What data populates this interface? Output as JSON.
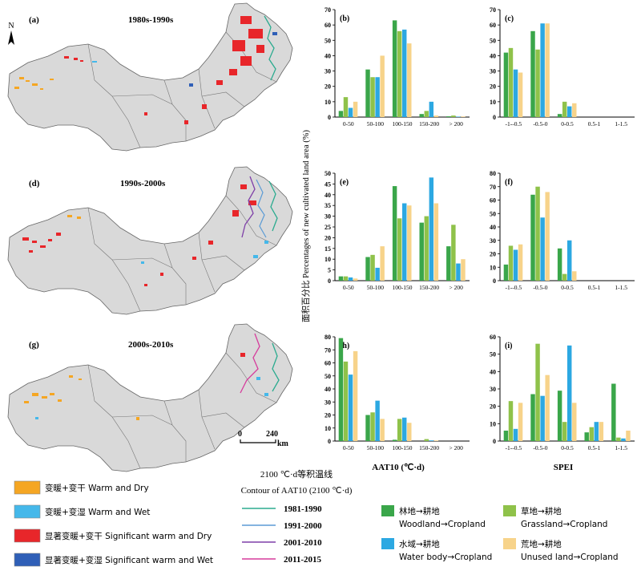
{
  "colors": {
    "woodland": "#3aa64a",
    "grassland": "#8fc24a",
    "water": "#2ca8e2",
    "unused": "#f7d38a",
    "warm_dry": "#f5a623",
    "warm_wet": "#45b8ea",
    "sig_warm_dry": "#e8262a",
    "sig_warm_wet": "#2f5fb7",
    "c1981": "#2bab8f",
    "c1991": "#5b9bd5",
    "c2001": "#7e3fa8",
    "c2011": "#d63c9c",
    "map_fill": "#d9d9d9"
  },
  "maps": [
    {
      "panel": "(a)",
      "title": "1980s-1990s"
    },
    {
      "panel": "(d)",
      "title": "1990s-2000s"
    },
    {
      "panel": "(g)",
      "title": "2000s-2010s"
    }
  ],
  "north_label": "N",
  "scale": {
    "zero": "0",
    "value": "240",
    "unit": "km"
  },
  "y_axis_label": "面积百分比 Percentages of new cultivated land area (%)",
  "x_label_aat": "AAT10 (℃·d)",
  "x_label_spei": "SPEI",
  "contour_title_cn": "2100 ℃·d等积温线",
  "contour_title_en": "Contour of AAT10 (2100 ℃·d)",
  "contours": [
    {
      "label": "1981-1990",
      "color_key": "c1981"
    },
    {
      "label": "1991-2000",
      "color_key": "c1991"
    },
    {
      "label": "2001-2010",
      "color_key": "c2001"
    },
    {
      "label": "2011-2015",
      "color_key": "c2011"
    }
  ],
  "climate_legend": [
    {
      "label": "变暖+变干 Warm and Dry",
      "color_key": "warm_dry"
    },
    {
      "label": "变暖+变湿 Warm and Wet",
      "color_key": "warm_wet"
    },
    {
      "label": "显著变暖+变干 Significant warm and Dry",
      "color_key": "sig_warm_dry"
    },
    {
      "label": "显著变暖+变湿  Significant warm and Wet",
      "color_key": "sig_warm_wet"
    }
  ],
  "conversion_legend": [
    {
      "cn": "林地→耕地",
      "en": "Woodland→Cropland",
      "color_key": "woodland"
    },
    {
      "cn": "草地→耕地",
      "en": "Grassland→Cropland",
      "color_key": "grassland"
    },
    {
      "cn": "水域→耕地",
      "en": "Water body→Cropland",
      "color_key": "water"
    },
    {
      "cn": "荒地→耕地",
      "en": "Unused land→Cropland",
      "color_key": "unused"
    }
  ],
  "chart_data": [
    {
      "panel": "(b)",
      "type": "bar",
      "axis": "aat",
      "categories": [
        "0-50",
        "50-100",
        "100-150",
        "150-200",
        "> 200"
      ],
      "ylim": [
        0,
        70
      ],
      "yticks": [
        0,
        10,
        20,
        30,
        40,
        50,
        60,
        70
      ],
      "series": [
        {
          "name": "林地→耕地 Woodland→Cropland",
          "color_key": "woodland",
          "values": [
            4,
            31,
            63,
            2,
            0.5
          ]
        },
        {
          "name": "草地→耕地 Grassland→Cropland",
          "color_key": "grassland",
          "values": [
            13,
            26,
            56,
            4,
            1
          ]
        },
        {
          "name": "水域→耕地 Water body→Cropland",
          "color_key": "water",
          "values": [
            6,
            26,
            57,
            10,
            0.3
          ]
        },
        {
          "name": "荒地→耕地 Unused land→Cropland",
          "color_key": "unused",
          "values": [
            10,
            40,
            48,
            1,
            0.4
          ]
        }
      ]
    },
    {
      "panel": "(c)",
      "type": "bar",
      "axis": "spei",
      "categories": [
        "-1--0.5",
        "-0.5-0",
        "0-0.5",
        "0.5-1",
        "1-1.5"
      ],
      "ylim": [
        0,
        70
      ],
      "yticks": [
        0,
        10,
        20,
        30,
        40,
        50,
        60,
        70
      ],
      "series": [
        {
          "name": "林地→耕地 Woodland→Cropland",
          "color_key": "woodland",
          "values": [
            42,
            56,
            2,
            0,
            0
          ]
        },
        {
          "name": "草地→耕地 Grassland→Cropland",
          "color_key": "grassland",
          "values": [
            45,
            44,
            10,
            0,
            0
          ]
        },
        {
          "name": "水域→耕地 Water body→Cropland",
          "color_key": "water",
          "values": [
            31,
            61,
            7,
            0,
            0
          ]
        },
        {
          "name": "荒地→耕地 Unused land→Cropland",
          "color_key": "unused",
          "values": [
            29,
            61,
            9,
            0,
            0
          ]
        }
      ]
    },
    {
      "panel": "(e)",
      "type": "bar",
      "axis": "aat",
      "categories": [
        "0-50",
        "50-100",
        "100-150",
        "150-200",
        "> 200"
      ],
      "ylim": [
        0,
        50
      ],
      "yticks": [
        0,
        5,
        10,
        15,
        20,
        25,
        30,
        35,
        40,
        45,
        50
      ],
      "series": [
        {
          "name": "林地→耕地 Woodland→Cropland",
          "color_key": "woodland",
          "values": [
            2,
            11,
            44,
            27,
            16
          ]
        },
        {
          "name": "草地→耕地 Grassland→Cropland",
          "color_key": "grassland",
          "values": [
            2,
            12,
            29,
            30,
            26
          ]
        },
        {
          "name": "水域→耕地 Water body→Cropland",
          "color_key": "water",
          "values": [
            1.5,
            6,
            36,
            48,
            8
          ]
        },
        {
          "name": "荒地→耕地 Unused land→Cropland",
          "color_key": "unused",
          "values": [
            1,
            16,
            35,
            36,
            10
          ]
        }
      ]
    },
    {
      "panel": "(f)",
      "type": "bar",
      "axis": "spei",
      "categories": [
        "-1--0.5",
        "-0.5-0",
        "0-0.5",
        "0.5-1",
        "1-1.5"
      ],
      "ylim": [
        0,
        80
      ],
      "yticks": [
        0,
        10,
        20,
        30,
        40,
        50,
        60,
        70,
        80
      ],
      "series": [
        {
          "name": "林地→耕地 Woodland→Cropland",
          "color_key": "woodland",
          "values": [
            12,
            64,
            24,
            0,
            0
          ]
        },
        {
          "name": "草地→耕地 Grassland→Cropland",
          "color_key": "grassland",
          "values": [
            26,
            70,
            5,
            0,
            0
          ]
        },
        {
          "name": "水域→耕地 Water body→Cropland",
          "color_key": "water",
          "values": [
            23,
            47,
            30,
            0,
            0
          ]
        },
        {
          "name": "荒地→耕地 Unused land→Cropland",
          "color_key": "unused",
          "values": [
            27,
            66,
            7,
            0,
            0
          ]
        }
      ]
    },
    {
      "panel": "(h)",
      "type": "bar",
      "axis": "aat",
      "categories": [
        "0-50",
        "50-100",
        "100-150",
        "150-200",
        "> 200"
      ],
      "ylim": [
        0,
        80
      ],
      "yticks": [
        0,
        10,
        20,
        30,
        40,
        50,
        60,
        70,
        80
      ],
      "series": [
        {
          "name": "林地→耕地 Woodland→Cropland",
          "color_key": "woodland",
          "values": [
            79,
            20,
            1,
            0,
            0
          ]
        },
        {
          "name": "草地→耕地 Grassland→Cropland",
          "color_key": "grassland",
          "values": [
            61,
            22,
            17,
            1.5,
            0
          ]
        },
        {
          "name": "水域→耕地 Water body→Cropland",
          "color_key": "water",
          "values": [
            51,
            31,
            18,
            0.5,
            0
          ]
        },
        {
          "name": "荒地→耕地 Unused land→Cropland",
          "color_key": "unused",
          "values": [
            69,
            17,
            14,
            0.5,
            0
          ]
        }
      ]
    },
    {
      "panel": "(i)",
      "type": "bar",
      "axis": "spei",
      "categories": [
        "-1--0.5",
        "-0.5-0",
        "0-0.5",
        "0.5-1",
        "1-1.5"
      ],
      "ylim": [
        0,
        60
      ],
      "yticks": [
        0,
        10,
        20,
        30,
        40,
        50,
        60
      ],
      "series": [
        {
          "name": "林地→耕地 Woodland→Cropland",
          "color_key": "woodland",
          "values": [
            6,
            27,
            29,
            5,
            33
          ]
        },
        {
          "name": "草地→耕地 Grassland→Cropland",
          "color_key": "grassland",
          "values": [
            23,
            56,
            11,
            8,
            2
          ]
        },
        {
          "name": "水域→耕地 Water body→Cropland",
          "color_key": "water",
          "values": [
            7,
            26,
            55,
            11,
            1.5
          ]
        },
        {
          "name": "荒地→耕地 Unused land→Cropland",
          "color_key": "unused",
          "values": [
            22,
            38,
            22,
            11,
            6
          ]
        }
      ]
    }
  ]
}
